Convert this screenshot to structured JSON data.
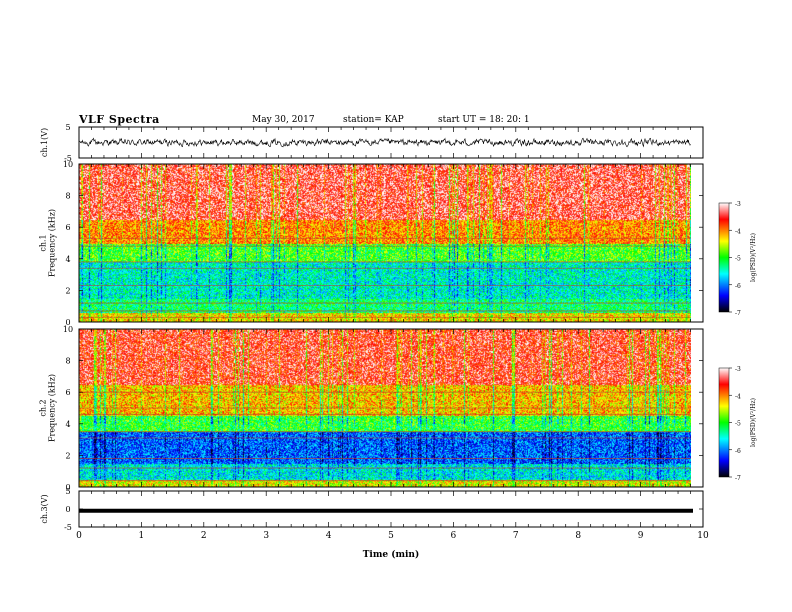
{
  "header": {
    "title": "VLF Spectra",
    "date": "May 30, 2017",
    "station": "station= KAP",
    "start": "start UT =  18: 20: 1"
  },
  "colors": {
    "scale": [
      "#000000",
      "#0000ff",
      "#00ffff",
      "#00ff00",
      "#ffff00",
      "#ff0000",
      "#ffffff"
    ]
  },
  "chart_data": [
    {
      "type": "line",
      "panel": "ch1-waveform",
      "ylabel": "ch.1(V)",
      "ylim": [
        -5,
        5
      ],
      "yticks": [
        "5",
        "-5"
      ],
      "x_range_min": [
        0,
        9.8
      ],
      "description_values": {
        "y_min": -1.4,
        "y_max": 1.6,
        "mean": 0
      }
    },
    {
      "type": "heatmap",
      "panel": "ch1-spectrogram",
      "ylabel": "ch.1\nFrequency (kHz)",
      "ylim": [
        0,
        10
      ],
      "yticks": [
        "0",
        "2",
        "4",
        "6",
        "8",
        "10"
      ],
      "colorbar": {
        "label": "log(PSD)(V²/Hz)",
        "ticks": [
          "-3",
          "-4",
          "-5",
          "-6",
          "-7"
        ],
        "range": [
          -7,
          -3
        ]
      },
      "bands_kHz_log_psd": [
        {
          "from": 0,
          "to": 0.6,
          "value": -4.3
        },
        {
          "from": 0.6,
          "to": 1.5,
          "value": -5.2
        },
        {
          "from": 1.5,
          "to": 3.8,
          "value": -5.5
        },
        {
          "from": 3.8,
          "to": 5.0,
          "value": -4.9
        },
        {
          "from": 5.0,
          "to": 6.5,
          "value": -4.0
        },
        {
          "from": 6.5,
          "to": 10,
          "value": -3.4
        }
      ],
      "lines_kHz": [
        0.3,
        0.7,
        1.2,
        2.3,
        3.4,
        3.8,
        4.8,
        5.3
      ]
    },
    {
      "type": "heatmap",
      "panel": "ch2-spectrogram",
      "ylabel": "ch.2\nFrequency (kHz)",
      "ylim": [
        0,
        10
      ],
      "yticks": [
        "0",
        "2",
        "4",
        "6",
        "8",
        "10"
      ],
      "colorbar": {
        "label": "log(PSD)(V²/Hz)",
        "ticks": [
          "-3",
          "-4",
          "-5",
          "-6",
          "-7"
        ],
        "range": [
          -7,
          -3
        ]
      },
      "bands_kHz_log_psd": [
        {
          "from": 0,
          "to": 0.5,
          "value": -4.4
        },
        {
          "from": 0.5,
          "to": 1.5,
          "value": -5.6
        },
        {
          "from": 1.5,
          "to": 3.5,
          "value": -6.1
        },
        {
          "from": 3.5,
          "to": 4.5,
          "value": -5.0
        },
        {
          "from": 4.5,
          "to": 6.5,
          "value": -4.2
        },
        {
          "from": 6.5,
          "to": 10,
          "value": -3.5
        }
      ],
      "lines_kHz": [
        0.4,
        1.2,
        1.8,
        3.1,
        3.5,
        4.6,
        5.0,
        6.0
      ]
    },
    {
      "type": "line",
      "panel": "ch3-waveform",
      "ylabel": "ch.3(V)",
      "ylim": [
        -5,
        5
      ],
      "yticks": [
        "5",
        "0",
        "-5"
      ],
      "value": -0.5
    }
  ],
  "x_axis": {
    "label": "Time (min)",
    "range": [
      0,
      10
    ],
    "data_end": 9.8,
    "ticks": [
      "0",
      "1",
      "2",
      "3",
      "4",
      "5",
      "6",
      "7",
      "8",
      "9",
      "10"
    ]
  }
}
